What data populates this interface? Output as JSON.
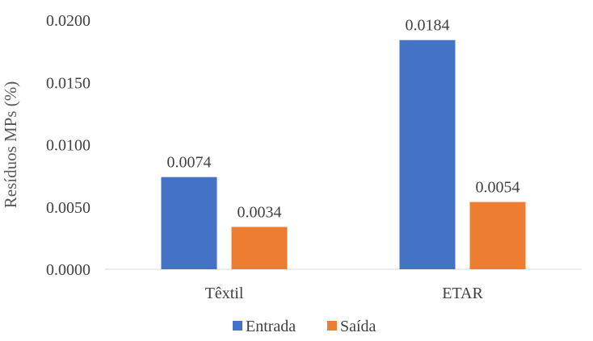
{
  "chart_data": {
    "type": "bar",
    "title": "",
    "xlabel": "",
    "ylabel": "Resíduos MPs (%)",
    "categories": [
      "Têxtil",
      "ETAR"
    ],
    "series": [
      {
        "name": "Entrada",
        "values": [
          0.0074,
          0.0184
        ],
        "labels": [
          "0.0074",
          "0.0184"
        ],
        "color": "#4472C4"
      },
      {
        "name": "Saída",
        "values": [
          0.0034,
          0.0054
        ],
        "labels": [
          "0.0034",
          "0.0054"
        ],
        "color": "#ED7D31"
      }
    ],
    "ylim": [
      0,
      0.02
    ],
    "yticks": [
      "0.0000",
      "0.0050",
      "0.0100",
      "0.0150",
      "0.0200"
    ],
    "ytick_values": [
      0,
      0.005,
      0.01,
      0.015,
      0.02
    ],
    "grid": false,
    "legend_position": "bottom"
  }
}
